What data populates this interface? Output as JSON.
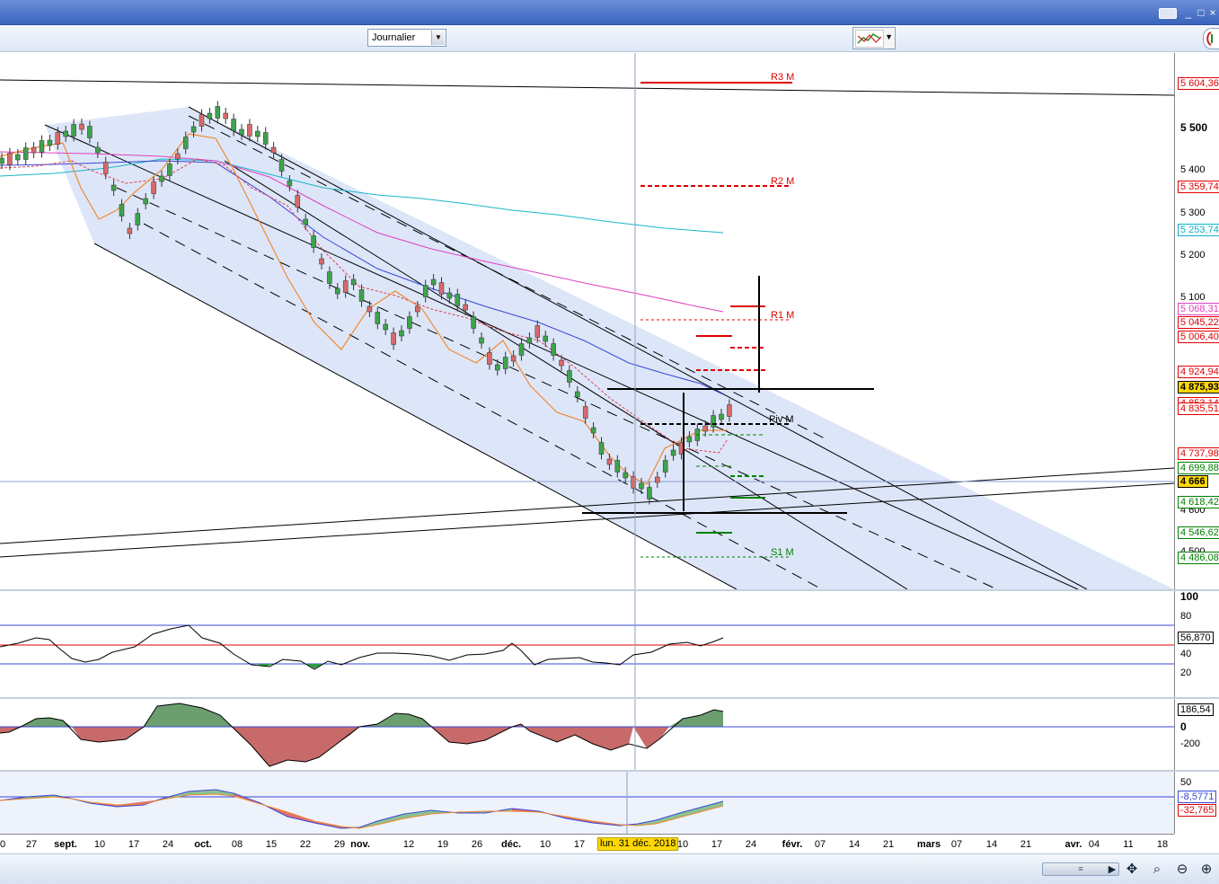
{
  "window": {
    "controls": [
      "_",
      "□",
      "×"
    ]
  },
  "toolbar": {
    "period_value": "Journalier",
    "period_arrow_icon": "chevron-down-icon",
    "indicator_button_icon": "chart-indicators-icon"
  },
  "price_panel": {
    "ticks": [
      "5 500",
      "5 400",
      "5 300",
      "5 200",
      "5 100",
      "4 600",
      "4 500"
    ],
    "tags": [
      {
        "text": "5 604,36",
        "color": "#e00000"
      },
      {
        "text": "5 359,74",
        "color": "#e00000"
      },
      {
        "text": "5 253,74",
        "color": "#10b0c8"
      },
      {
        "text": "5 068,31",
        "color": "#e040c0"
      },
      {
        "text": "5 045,22",
        "color": "#e00000"
      },
      {
        "text": "5 006,40",
        "color": "#e00000"
      },
      {
        "text": "4 924,94",
        "color": "#e00000"
      },
      {
        "text": "4 875,93",
        "color": "#000000",
        "fill": "#ffd800"
      },
      {
        "text": "4 853,14",
        "color": "#e00000"
      },
      {
        "text": "4 835,51",
        "color": "#e00000"
      },
      {
        "text": "4 737,98",
        "color": "#e00000"
      },
      {
        "text": "4 699,88",
        "color": "#008000"
      },
      {
        "text": "4 666",
        "color": "#000000",
        "fill": "#ffd800"
      },
      {
        "text": "4 618,42",
        "color": "#008000"
      },
      {
        "text": "4 546,62",
        "color": "#008000"
      },
      {
        "text": "4 486,08",
        "color": "#008000"
      }
    ],
    "pivot_labels": {
      "r3": "R3 M",
      "r2": "R2 M",
      "r1": "R1 M",
      "piv": "Piv M",
      "s1": "S1 M"
    }
  },
  "rsi_panel": {
    "ticks": [
      "100",
      "80",
      "40",
      "20"
    ],
    "value": "56,870"
  },
  "osc_panel": {
    "ticks": [
      "0",
      "-200"
    ],
    "value": "186,54"
  },
  "macd_panel": {
    "ticks": [
      "50"
    ],
    "values": [
      "-8,5771",
      "-32,765"
    ]
  },
  "date_axis": {
    "labels": [
      {
        "t": "0"
      },
      {
        "t": "27"
      },
      {
        "t": "sept.",
        "m": true
      },
      {
        "t": "10"
      },
      {
        "t": "17"
      },
      {
        "t": "24"
      },
      {
        "t": "oct.",
        "m": true
      },
      {
        "t": "08"
      },
      {
        "t": "15"
      },
      {
        "t": "22"
      },
      {
        "t": "29"
      },
      {
        "t": "nov.",
        "m": true
      },
      {
        "t": "12"
      },
      {
        "t": "19"
      },
      {
        "t": "26"
      },
      {
        "t": "déc.",
        "m": true
      },
      {
        "t": "10"
      },
      {
        "t": "17"
      },
      {
        "t": "10"
      },
      {
        "t": "17"
      },
      {
        "t": "24"
      },
      {
        "t": "févr.",
        "m": true
      },
      {
        "t": "07"
      },
      {
        "t": "14"
      },
      {
        "t": "21"
      },
      {
        "t": "mars",
        "m": true
      },
      {
        "t": "07"
      },
      {
        "t": "14"
      },
      {
        "t": "21"
      },
      {
        "t": "avr.",
        "m": true
      },
      {
        "t": "04"
      },
      {
        "t": "11"
      },
      {
        "t": "18"
      }
    ],
    "cursor": "lun. 31 déc. 2018"
  },
  "bottom": {
    "scroll_thumb": "≡",
    "buttons": [
      "play-icon",
      "pan-icon",
      "zoom-fit-icon",
      "zoom-out-icon",
      "zoom-in-icon"
    ]
  }
}
